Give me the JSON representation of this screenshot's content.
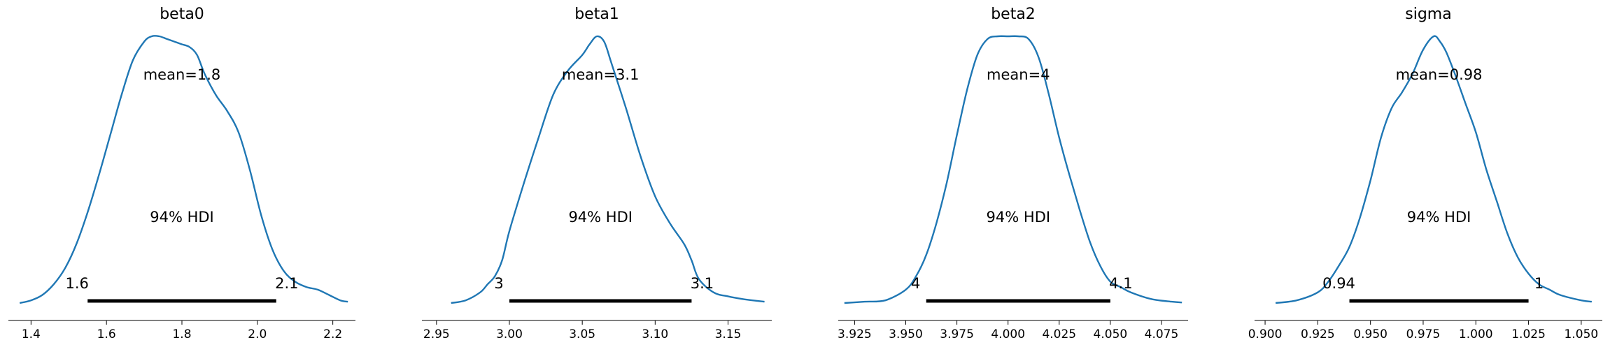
{
  "chart_data": [
    {
      "type": "area",
      "title": "beta0",
      "mean_label": "mean=1.8",
      "hdi_label": "94% HDI",
      "hdi_low_label": "1.6",
      "hdi_high_label": "2.1",
      "hdi": [
        1.55,
        2.05
      ],
      "xlim": [
        1.34,
        2.26
      ],
      "ticks": [
        1.4,
        1.6,
        1.8,
        2.0,
        2.2
      ],
      "tick_labels": [
        "1.4",
        "1.6",
        "1.8",
        "2.0",
        "2.2"
      ],
      "x": [
        1.37,
        1.4,
        1.43,
        1.46,
        1.49,
        1.52,
        1.55,
        1.58,
        1.61,
        1.64,
        1.67,
        1.7,
        1.72,
        1.74,
        1.76,
        1.78,
        1.8,
        1.82,
        1.84,
        1.86,
        1.89,
        1.92,
        1.95,
        1.98,
        2.01,
        2.04,
        2.07,
        2.1,
        2.13,
        2.16,
        2.19,
        2.22,
        2.24
      ],
      "density": [
        0.0,
        0.01,
        0.03,
        0.07,
        0.13,
        0.22,
        0.34,
        0.48,
        0.63,
        0.78,
        0.91,
        0.98,
        1.0,
        1.0,
        0.99,
        0.98,
        0.97,
        0.96,
        0.93,
        0.86,
        0.78,
        0.72,
        0.64,
        0.5,
        0.33,
        0.2,
        0.12,
        0.08,
        0.06,
        0.05,
        0.03,
        0.01,
        0.005
      ]
    },
    {
      "type": "area",
      "title": "beta1",
      "mean_label": "mean=3.1",
      "hdi_label": "94% HDI",
      "hdi_low_label": "3",
      "hdi_high_label": "3.1",
      "hdi": [
        3.0,
        3.125
      ],
      "xlim": [
        2.94,
        3.18
      ],
      "ticks": [
        2.95,
        3.0,
        3.05,
        3.1,
        3.15
      ],
      "tick_labels": [
        "2.95",
        "3.00",
        "3.05",
        "3.10",
        "3.15"
      ],
      "x": [
        2.96,
        2.97,
        2.98,
        2.985,
        2.99,
        2.995,
        3.0,
        3.01,
        3.02,
        3.03,
        3.04,
        3.05,
        3.055,
        3.06,
        3.065,
        3.07,
        3.08,
        3.09,
        3.1,
        3.11,
        3.12,
        3.125,
        3.13,
        3.14,
        3.15,
        3.16,
        3.17,
        3.175
      ],
      "density": [
        0.0,
        0.01,
        0.04,
        0.07,
        0.1,
        0.16,
        0.27,
        0.45,
        0.62,
        0.78,
        0.87,
        0.93,
        0.97,
        1.0,
        0.98,
        0.9,
        0.73,
        0.55,
        0.4,
        0.3,
        0.22,
        0.16,
        0.09,
        0.04,
        0.025,
        0.015,
        0.008,
        0.005
      ]
    },
    {
      "type": "area",
      "title": "beta2",
      "mean_label": "mean=4",
      "hdi_label": "94% HDI",
      "hdi_low_label": "4",
      "hdi_high_label": "4.1",
      "hdi": [
        3.96,
        4.05
      ],
      "xlim": [
        3.917,
        4.088
      ],
      "ticks": [
        3.925,
        3.95,
        3.975,
        4.0,
        4.025,
        4.05,
        4.075
      ],
      "tick_labels": [
        "3.925",
        "3.950",
        "3.975",
        "4.000",
        "4.025",
        "4.050",
        "4.075"
      ],
      "x": [
        3.92,
        3.93,
        3.94,
        3.95,
        3.955,
        3.96,
        3.965,
        3.97,
        3.975,
        3.98,
        3.985,
        3.99,
        3.995,
        4.0,
        4.005,
        4.01,
        4.015,
        4.02,
        4.025,
        4.03,
        4.035,
        4.04,
        4.045,
        4.05,
        4.055,
        4.06,
        4.07,
        4.08,
        4.085
      ],
      "density": [
        0.0,
        0.005,
        0.01,
        0.05,
        0.1,
        0.18,
        0.3,
        0.45,
        0.63,
        0.8,
        0.93,
        0.99,
        1.0,
        1.0,
        1.0,
        0.99,
        0.92,
        0.78,
        0.62,
        0.48,
        0.35,
        0.23,
        0.14,
        0.08,
        0.06,
        0.04,
        0.015,
        0.005,
        0.002
      ]
    },
    {
      "type": "area",
      "title": "sigma",
      "mean_label": "mean=0.98",
      "hdi_label": "94% HDI",
      "hdi_low_label": "0.94",
      "hdi_high_label": "1",
      "hdi": [
        0.94,
        1.025
      ],
      "xlim": [
        0.895,
        1.06
      ],
      "ticks": [
        0.9,
        0.925,
        0.95,
        0.975,
        1.0,
        1.025,
        1.05
      ],
      "tick_labels": [
        "0.900",
        "0.925",
        "0.950",
        "0.975",
        "1.000",
        "1.025",
        "1.050"
      ],
      "x": [
        0.905,
        0.915,
        0.925,
        0.93,
        0.935,
        0.94,
        0.945,
        0.95,
        0.955,
        0.96,
        0.965,
        0.97,
        0.975,
        0.98,
        0.983,
        0.986,
        0.99,
        0.995,
        1.0,
        1.005,
        1.01,
        1.015,
        1.02,
        1.025,
        1.03,
        1.035,
        1.04,
        1.05,
        1.055
      ],
      "density": [
        0.0,
        0.01,
        0.04,
        0.08,
        0.14,
        0.21,
        0.32,
        0.46,
        0.62,
        0.73,
        0.79,
        0.86,
        0.95,
        1.0,
        0.98,
        0.94,
        0.86,
        0.75,
        0.64,
        0.5,
        0.38,
        0.26,
        0.17,
        0.11,
        0.07,
        0.05,
        0.03,
        0.01,
        0.005
      ]
    }
  ]
}
